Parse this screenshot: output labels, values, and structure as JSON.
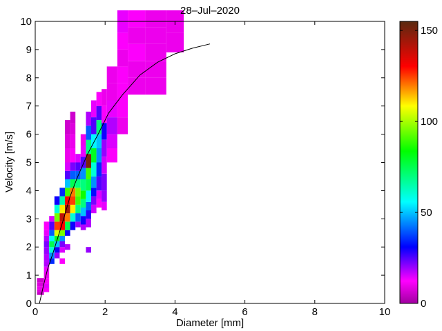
{
  "chart_data": {
    "type": "heatmap",
    "title": "28–Jul–2020",
    "xlabel": "Diameter [mm]",
    "ylabel": "Velocity [m/s]",
    "xlim": [
      0,
      10
    ],
    "ylim": [
      0,
      10
    ],
    "xticks": [
      "0",
      "2",
      "4",
      "6",
      "8",
      "10"
    ],
    "yticks": [
      "0",
      "1",
      "2",
      "3",
      "4",
      "5",
      "6",
      "7",
      "8",
      "9",
      "10"
    ],
    "colorbar": {
      "range": [
        0,
        155
      ],
      "ticks": [
        "0",
        "50",
        "100",
        "150"
      ]
    },
    "cells": [
      [
        0.05,
        0.25,
        0.3,
        0.4,
        5
      ],
      [
        0.05,
        0.25,
        0.4,
        0.5,
        8
      ],
      [
        0.05,
        0.25,
        0.5,
        0.6,
        10
      ],
      [
        0.05,
        0.25,
        0.6,
        0.75,
        8
      ],
      [
        0.05,
        0.25,
        0.75,
        0.9,
        6
      ],
      [
        0.25,
        0.4,
        0.4,
        0.55,
        12
      ],
      [
        0.25,
        0.4,
        0.55,
        0.7,
        14
      ],
      [
        0.25,
        0.4,
        0.7,
        0.9,
        12
      ],
      [
        0.25,
        0.4,
        0.9,
        1.1,
        10
      ],
      [
        0.25,
        0.4,
        1.1,
        1.3,
        14
      ],
      [
        0.25,
        0.4,
        1.3,
        1.5,
        18
      ],
      [
        0.25,
        0.4,
        1.5,
        1.75,
        18
      ],
      [
        0.25,
        0.4,
        1.75,
        2.0,
        20
      ],
      [
        0.25,
        0.4,
        2.0,
        2.2,
        22
      ],
      [
        0.25,
        0.4,
        2.2,
        2.4,
        18
      ],
      [
        0.25,
        0.4,
        2.4,
        2.6,
        14
      ],
      [
        0.25,
        0.4,
        2.6,
        2.9,
        12
      ],
      [
        0.4,
        0.55,
        1.4,
        1.6,
        35
      ],
      [
        0.4,
        0.55,
        1.6,
        1.8,
        45
      ],
      [
        0.4,
        0.55,
        1.8,
        2.0,
        60
      ],
      [
        0.4,
        0.55,
        2.0,
        2.2,
        75
      ],
      [
        0.4,
        0.55,
        2.2,
        2.4,
        55
      ],
      [
        0.4,
        0.55,
        2.4,
        2.6,
        40
      ],
      [
        0.4,
        0.55,
        2.6,
        2.9,
        25
      ],
      [
        0.4,
        0.55,
        2.9,
        3.1,
        15
      ],
      [
        0.55,
        0.7,
        1.6,
        1.8,
        20
      ],
      [
        0.55,
        0.7,
        1.8,
        2.0,
        30
      ],
      [
        0.55,
        0.7,
        2.0,
        2.2,
        50
      ],
      [
        0.55,
        0.7,
        2.2,
        2.4,
        80
      ],
      [
        0.55,
        0.7,
        2.4,
        2.6,
        105
      ],
      [
        0.55,
        0.7,
        2.6,
        2.9,
        125
      ],
      [
        0.55,
        0.7,
        2.9,
        3.2,
        95
      ],
      [
        0.55,
        0.7,
        3.2,
        3.5,
        60
      ],
      [
        0.55,
        0.7,
        3.5,
        3.8,
        30
      ],
      [
        0.7,
        0.85,
        1.4,
        1.6,
        12
      ],
      [
        0.7,
        0.85,
        1.8,
        2.0,
        15
      ],
      [
        0.7,
        0.85,
        2.0,
        2.2,
        22
      ],
      [
        0.7,
        0.85,
        2.2,
        2.4,
        45
      ],
      [
        0.7,
        0.85,
        2.4,
        2.6,
        95
      ],
      [
        0.7,
        0.85,
        2.6,
        2.9,
        130
      ],
      [
        0.7,
        0.85,
        2.9,
        3.2,
        140
      ],
      [
        0.7,
        0.85,
        3.2,
        3.5,
        110
      ],
      [
        0.7,
        0.85,
        3.5,
        3.8,
        65
      ],
      [
        0.7,
        0.85,
        3.8,
        4.1,
        35
      ],
      [
        0.85,
        1.0,
        1.9,
        2.1,
        18
      ],
      [
        0.85,
        1.0,
        2.4,
        2.6,
        30
      ],
      [
        0.85,
        1.0,
        2.6,
        2.9,
        75
      ],
      [
        0.85,
        1.0,
        2.9,
        3.2,
        120
      ],
      [
        0.85,
        1.0,
        3.2,
        3.5,
        145
      ],
      [
        0.85,
        1.0,
        3.5,
        3.8,
        130
      ],
      [
        0.85,
        1.0,
        3.8,
        4.1,
        90
      ],
      [
        0.85,
        1.0,
        4.1,
        4.4,
        50
      ],
      [
        0.85,
        1.0,
        4.4,
        4.7,
        25
      ],
      [
        0.85,
        1.0,
        4.7,
        5.0,
        15
      ],
      [
        0.85,
        1.0,
        5.0,
        5.5,
        10
      ],
      [
        0.85,
        1.0,
        5.5,
        6.0,
        8
      ],
      [
        0.85,
        1.0,
        6.0,
        6.5,
        6
      ],
      [
        1.0,
        1.15,
        2.6,
        2.9,
        30
      ],
      [
        1.0,
        1.15,
        2.9,
        3.2,
        60
      ],
      [
        1.0,
        1.15,
        3.2,
        3.5,
        110
      ],
      [
        1.0,
        1.15,
        3.5,
        3.8,
        125
      ],
      [
        1.0,
        1.15,
        3.8,
        4.1,
        120
      ],
      [
        1.0,
        1.15,
        4.1,
        4.4,
        75
      ],
      [
        1.0,
        1.15,
        4.4,
        4.7,
        40
      ],
      [
        1.0,
        1.15,
        4.7,
        5.0,
        22
      ],
      [
        1.0,
        1.15,
        5.0,
        5.5,
        12
      ],
      [
        1.0,
        1.15,
        5.5,
        6.0,
        10
      ],
      [
        1.0,
        1.15,
        6.0,
        6.4,
        8
      ],
      [
        1.0,
        1.15,
        6.4,
        6.8,
        6
      ],
      [
        1.15,
        1.3,
        2.7,
        2.9,
        20
      ],
      [
        1.15,
        1.3,
        2.9,
        3.2,
        40
      ],
      [
        1.15,
        1.3,
        3.2,
        3.5,
        70
      ],
      [
        1.15,
        1.3,
        3.5,
        3.8,
        90
      ],
      [
        1.15,
        1.3,
        3.8,
        4.1,
        95
      ],
      [
        1.15,
        1.3,
        4.1,
        4.4,
        70
      ],
      [
        1.15,
        1.3,
        4.4,
        4.7,
        40
      ],
      [
        1.15,
        1.3,
        4.7,
        5.0,
        25
      ],
      [
        1.15,
        1.3,
        5.0,
        5.3,
        15
      ],
      [
        1.3,
        1.45,
        2.6,
        2.8,
        18
      ],
      [
        1.3,
        1.45,
        2.8,
        3.1,
        30
      ],
      [
        1.3,
        1.45,
        3.1,
        3.4,
        50
      ],
      [
        1.3,
        1.45,
        3.4,
        3.7,
        70
      ],
      [
        1.3,
        1.45,
        3.7,
        4.0,
        85
      ],
      [
        1.3,
        1.45,
        4.0,
        4.4,
        70
      ],
      [
        1.3,
        1.45,
        4.4,
        4.8,
        45
      ],
      [
        1.3,
        1.45,
        4.8,
        5.2,
        25
      ],
      [
        1.3,
        1.45,
        5.2,
        5.6,
        14
      ],
      [
        1.3,
        1.45,
        5.6,
        6.0,
        10
      ],
      [
        1.45,
        1.6,
        1.8,
        2.0,
        20
      ],
      [
        1.45,
        1.6,
        2.7,
        3.0,
        18
      ],
      [
        1.45,
        1.6,
        3.0,
        3.3,
        28
      ],
      [
        1.45,
        1.6,
        3.3,
        3.6,
        40
      ],
      [
        1.45,
        1.6,
        3.6,
        4.0,
        55
      ],
      [
        1.45,
        1.6,
        4.0,
        4.4,
        75
      ],
      [
        1.45,
        1.6,
        4.4,
        4.8,
        90
      ],
      [
        1.45,
        1.6,
        4.8,
        5.3,
        150
      ],
      [
        1.45,
        1.6,
        5.3,
        5.8,
        70
      ],
      [
        1.45,
        1.6,
        5.8,
        6.3,
        40
      ],
      [
        1.45,
        1.6,
        6.3,
        6.8,
        18
      ],
      [
        1.6,
        1.75,
        3.2,
        3.5,
        16
      ],
      [
        1.6,
        1.75,
        3.5,
        3.8,
        22
      ],
      [
        1.6,
        1.75,
        3.8,
        4.1,
        32
      ],
      [
        1.6,
        1.75,
        4.1,
        4.5,
        45
      ],
      [
        1.6,
        1.75,
        4.5,
        5.0,
        60
      ],
      [
        1.6,
        1.75,
        5.0,
        5.5,
        80
      ],
      [
        1.6,
        1.75,
        5.5,
        6.0,
        55
      ],
      [
        1.6,
        1.75,
        6.0,
        6.6,
        25
      ],
      [
        1.6,
        1.75,
        6.6,
        7.2,
        14
      ],
      [
        1.75,
        1.9,
        3.4,
        3.7,
        12
      ],
      [
        1.75,
        1.9,
        3.7,
        4.0,
        15
      ],
      [
        1.75,
        1.9,
        4.0,
        4.5,
        25
      ],
      [
        1.75,
        1.9,
        4.5,
        5.0,
        35
      ],
      [
        1.75,
        1.9,
        5.0,
        5.5,
        45
      ],
      [
        1.75,
        1.9,
        5.5,
        6.0,
        50
      ],
      [
        1.75,
        1.9,
        6.0,
        6.5,
        70
      ],
      [
        1.75,
        1.9,
        6.5,
        7.0,
        25
      ],
      [
        1.75,
        1.9,
        7.0,
        7.5,
        12
      ],
      [
        1.9,
        2.05,
        3.3,
        3.6,
        14
      ],
      [
        1.9,
        2.05,
        3.6,
        4.0,
        20
      ],
      [
        1.9,
        2.05,
        4.0,
        4.6,
        22
      ],
      [
        1.9,
        2.05,
        4.6,
        5.2,
        16
      ],
      [
        1.9,
        2.05,
        5.2,
        5.8,
        20
      ],
      [
        1.9,
        2.05,
        5.8,
        6.4,
        30
      ],
      [
        1.9,
        2.05,
        6.4,
        7.0,
        12
      ],
      [
        1.9,
        2.05,
        7.0,
        7.6,
        10
      ],
      [
        2.05,
        2.35,
        5.0,
        5.5,
        12
      ],
      [
        2.05,
        2.35,
        5.5,
        6.0,
        15
      ],
      [
        2.05,
        2.35,
        6.0,
        6.6,
        18
      ],
      [
        2.05,
        2.35,
        6.6,
        7.2,
        14
      ],
      [
        2.05,
        2.35,
        7.2,
        7.8,
        10
      ],
      [
        2.05,
        2.35,
        7.8,
        8.4,
        10
      ],
      [
        2.35,
        2.65,
        6.0,
        6.6,
        10
      ],
      [
        2.35,
        2.65,
        6.6,
        7.2,
        12
      ],
      [
        2.35,
        2.65,
        7.2,
        7.8,
        12
      ],
      [
        2.35,
        2.65,
        7.8,
        8.4,
        12
      ],
      [
        2.35,
        2.65,
        8.4,
        9.0,
        10
      ],
      [
        2.35,
        2.65,
        9.0,
        9.6,
        12
      ],
      [
        2.35,
        2.65,
        9.6,
        10.4,
        14
      ],
      [
        2.65,
        3.15,
        7.4,
        8.0,
        10
      ],
      [
        2.65,
        3.15,
        8.0,
        8.6,
        10
      ],
      [
        2.65,
        3.15,
        8.6,
        9.2,
        12
      ],
      [
        2.65,
        3.15,
        9.2,
        9.8,
        10
      ],
      [
        2.65,
        3.15,
        9.8,
        10.4,
        12
      ],
      [
        3.15,
        3.75,
        7.4,
        8.0,
        10
      ],
      [
        3.15,
        3.75,
        8.0,
        8.6,
        10
      ],
      [
        3.15,
        3.75,
        8.6,
        9.2,
        10
      ],
      [
        3.15,
        3.75,
        9.2,
        9.8,
        10
      ],
      [
        3.15,
        3.75,
        9.8,
        10.4,
        10
      ],
      [
        3.75,
        4.25,
        8.9,
        9.6,
        10
      ],
      [
        3.75,
        4.25,
        9.6,
        10.4,
        10
      ]
    ],
    "fit_line": {
      "x": [
        0.12,
        0.25,
        0.35,
        0.5,
        0.65,
        0.8,
        1.0,
        1.2,
        1.5,
        1.8,
        2.1,
        2.5,
        3.0,
        3.5,
        4.0,
        4.5,
        5.0
      ],
      "y": [
        0.0,
        0.7,
        1.2,
        1.75,
        2.35,
        2.95,
        3.8,
        4.45,
        5.3,
        6.0,
        6.75,
        7.4,
        8.1,
        8.55,
        8.85,
        9.05,
        9.2
      ]
    }
  }
}
